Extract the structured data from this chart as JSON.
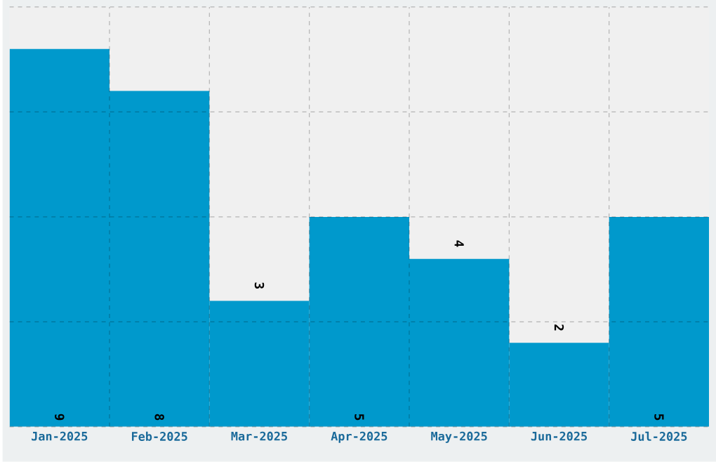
{
  "chart_data": {
    "type": "bar",
    "categories": [
      "Jan-2025",
      "Feb-2025",
      "Mar-2025",
      "Apr-2025",
      "May-2025",
      "Jun-2025",
      "Jul-2025"
    ],
    "values": [
      9,
      8,
      3,
      5,
      4,
      2,
      5
    ],
    "color": "#0099cc",
    "ylim": [
      0,
      10
    ],
    "yticks": [
      {
        "value": 0,
        "label": null
      },
      {
        "value": 2.5,
        "label": null
      },
      {
        "value": 5,
        "label": null
      },
      {
        "value": 7.5,
        "label": null
      },
      {
        "value": 10,
        "label": null
      }
    ],
    "tick_labels": "x",
    "grid": true,
    "data_labels": true
  }
}
